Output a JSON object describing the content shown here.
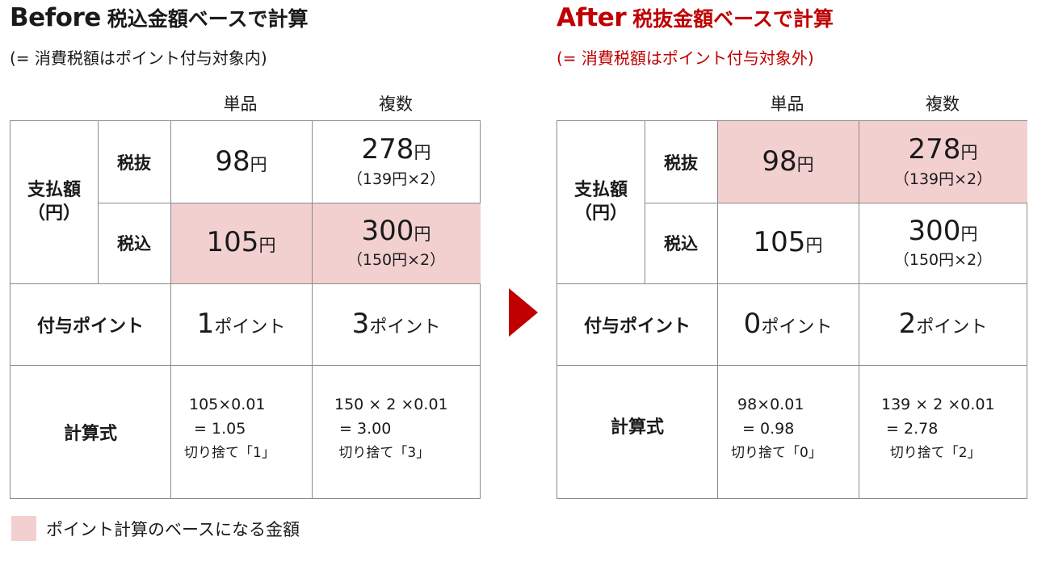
{
  "colors": {
    "accent": "#c00000",
    "highlight": "#f2d0d0",
    "text": "#1a1a1a",
    "border": "#8a8a8a"
  },
  "icons": {
    "arrow": "right-triangle"
  },
  "before": {
    "title_en": "Before",
    "title_jp": "税込金額ベースで計算",
    "subtitle": "(= 消費税額はポイント付与対象内)",
    "col_single": "単品",
    "col_multi": "複数",
    "row_payment": "支払額\n（円）",
    "row_excl": "税抜",
    "row_incl": "税込",
    "row_points": "付与ポイント",
    "row_formula": "計算式",
    "excl_single_value": "98",
    "excl_multi_value": "278",
    "excl_multi_sub": "（139円×2）",
    "incl_single_value": "105",
    "incl_multi_value": "300",
    "incl_multi_sub": "（150円×2）",
    "points_single_value": "1",
    "points_multi_value": "3",
    "formula_single": [
      "105×0.01",
      " = 1.05",
      "切り捨て「1」"
    ],
    "formula_multi": [
      "150 × 2 ×0.01",
      " = 3.00",
      " 切り捨て「3」"
    ],
    "highlight_row": "incl"
  },
  "after": {
    "title_en": "After",
    "title_jp": "税抜金額ベースで計算",
    "subtitle": "(= 消費税額はポイント付与対象外)",
    "col_single": "単品",
    "col_multi": "複数",
    "row_payment": "支払額\n（円）",
    "row_excl": "税抜",
    "row_incl": "税込",
    "row_points": "付与ポイント",
    "row_formula": "計算式",
    "excl_single_value": "98",
    "excl_multi_value": "278",
    "excl_multi_sub": "（139円×2）",
    "incl_single_value": "105",
    "incl_multi_value": "300",
    "incl_multi_sub": "（150円×2）",
    "points_single_value": "0",
    "points_multi_value": "2",
    "formula_single": [
      "98×0.01",
      " = 0.98",
      "切り捨て「0」"
    ],
    "formula_multi": [
      "139 × 2 ×0.01",
      " = 2.78",
      "  切り捨て「2」"
    ],
    "highlight_row": "excl"
  },
  "units": {
    "yen": "円",
    "points": "ポイント"
  },
  "legend": {
    "text": "ポイント計算のベースになる金額"
  }
}
